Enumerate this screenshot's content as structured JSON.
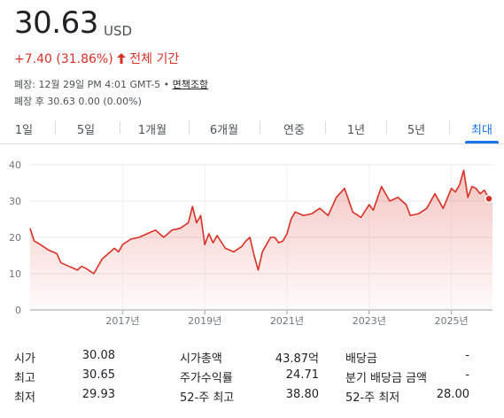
{
  "quote": {
    "price": "30.63",
    "currency": "USD",
    "change": "+7.40 (31.86%)",
    "change_arrow": "🡑",
    "change_period": "전체 기간",
    "close_info": "폐장: 12월 29일 PM 4:01 GMT-5 • ",
    "disclaimer_link": "면책조항",
    "after_hours": "폐장 후 30.63 0.00 (0.00%)",
    "accent_red": "#d93025",
    "accent_blue": "#1a73e8"
  },
  "tabs": [
    {
      "label": "1일",
      "active": false
    },
    {
      "label": "5일",
      "active": false
    },
    {
      "label": "1개월",
      "active": false
    },
    {
      "label": "6개월",
      "active": false
    },
    {
      "label": "연중",
      "active": false
    },
    {
      "label": "1년",
      "active": false
    },
    {
      "label": "5년",
      "active": false
    },
    {
      "label": "최대",
      "active": true
    }
  ],
  "chart_data": {
    "type": "area",
    "title": "",
    "xlabel": "",
    "ylabel": "",
    "ylim": [
      0,
      40
    ],
    "yticks": [
      "0",
      "10",
      "20",
      "30",
      "40"
    ],
    "xticks": [
      {
        "label": "2017년",
        "x": 2017
      },
      {
        "label": "2019년",
        "x": 2019
      },
      {
        "label": "2021년",
        "x": 2021
      },
      {
        "label": "2023년",
        "x": 2023
      },
      {
        "label": "2025년",
        "x": 2025
      }
    ],
    "xlim": [
      2014.75,
      2026.0
    ],
    "grid": true,
    "line_color": "#d93025",
    "series": [
      {
        "x": [
          2014.75,
          2014.85,
          2015.0,
          2015.2,
          2015.4,
          2015.5,
          2015.7,
          2015.9,
          2016.0,
          2016.1,
          2016.3,
          2016.5,
          2016.6,
          2016.8,
          2016.9,
          2017.0,
          2017.2,
          2017.4,
          2017.6,
          2017.8,
          2018.0,
          2018.2,
          2018.4,
          2018.6,
          2018.7,
          2018.8,
          2018.9,
          2019.0,
          2019.1,
          2019.2,
          2019.3,
          2019.5,
          2019.7,
          2019.9,
          2020.0,
          2020.1,
          2020.2,
          2020.3,
          2020.4,
          2020.5,
          2020.6,
          2020.7,
          2020.8,
          2020.9,
          2021.0,
          2021.1,
          2021.2,
          2021.4,
          2021.6,
          2021.8,
          2022.0,
          2022.2,
          2022.4,
          2022.6,
          2022.8,
          2023.0,
          2023.1,
          2023.3,
          2023.5,
          2023.7,
          2023.9,
          2024.0,
          2024.2,
          2024.4,
          2024.6,
          2024.8,
          2025.0,
          2025.1,
          2025.2,
          2025.3,
          2025.4,
          2025.5,
          2025.6,
          2025.7,
          2025.8,
          2025.9,
          2026.0
        ],
        "y": [
          22.5,
          19.0,
          18.0,
          16.5,
          15.5,
          13.0,
          12.0,
          11.0,
          12.0,
          11.5,
          10.0,
          14.0,
          15.0,
          17.0,
          16.0,
          18.0,
          19.5,
          20.0,
          21.0,
          22.0,
          20.0,
          22.0,
          22.5,
          24.0,
          28.5,
          24.0,
          26.0,
          18.0,
          21.0,
          18.5,
          20.5,
          17.0,
          16.0,
          17.5,
          19.0,
          20.0,
          15.0,
          11.0,
          16.0,
          18.0,
          20.0,
          20.0,
          18.5,
          19.0,
          21.0,
          25.0,
          27.0,
          26.0,
          26.5,
          28.0,
          26.0,
          31.0,
          33.5,
          27.0,
          25.5,
          29.0,
          27.5,
          34.0,
          30.0,
          31.0,
          29.0,
          26.0,
          26.5,
          28.0,
          32.0,
          28.0,
          33.5,
          32.5,
          34.5,
          38.5,
          31.0,
          34.0,
          33.5,
          32.0,
          33.0,
          31.0,
          30.63
        ]
      }
    ]
  },
  "stats": {
    "rows": [
      [
        {
          "label": "시가",
          "value": "30.08"
        },
        {
          "label": "시가총액",
          "value": "43.87억"
        },
        {
          "label": "배당금",
          "value": "-"
        }
      ],
      [
        {
          "label": "최고",
          "value": "30.65"
        },
        {
          "label": "주가수익률",
          "value": "24.71"
        },
        {
          "label": "분기 배당금 금액",
          "value": "-"
        }
      ],
      [
        {
          "label": "최저",
          "value": "29.93"
        },
        {
          "label": "52-주 최고",
          "value": "38.80"
        },
        {
          "label": "52-주 최저",
          "value": "28.00"
        }
      ]
    ]
  }
}
